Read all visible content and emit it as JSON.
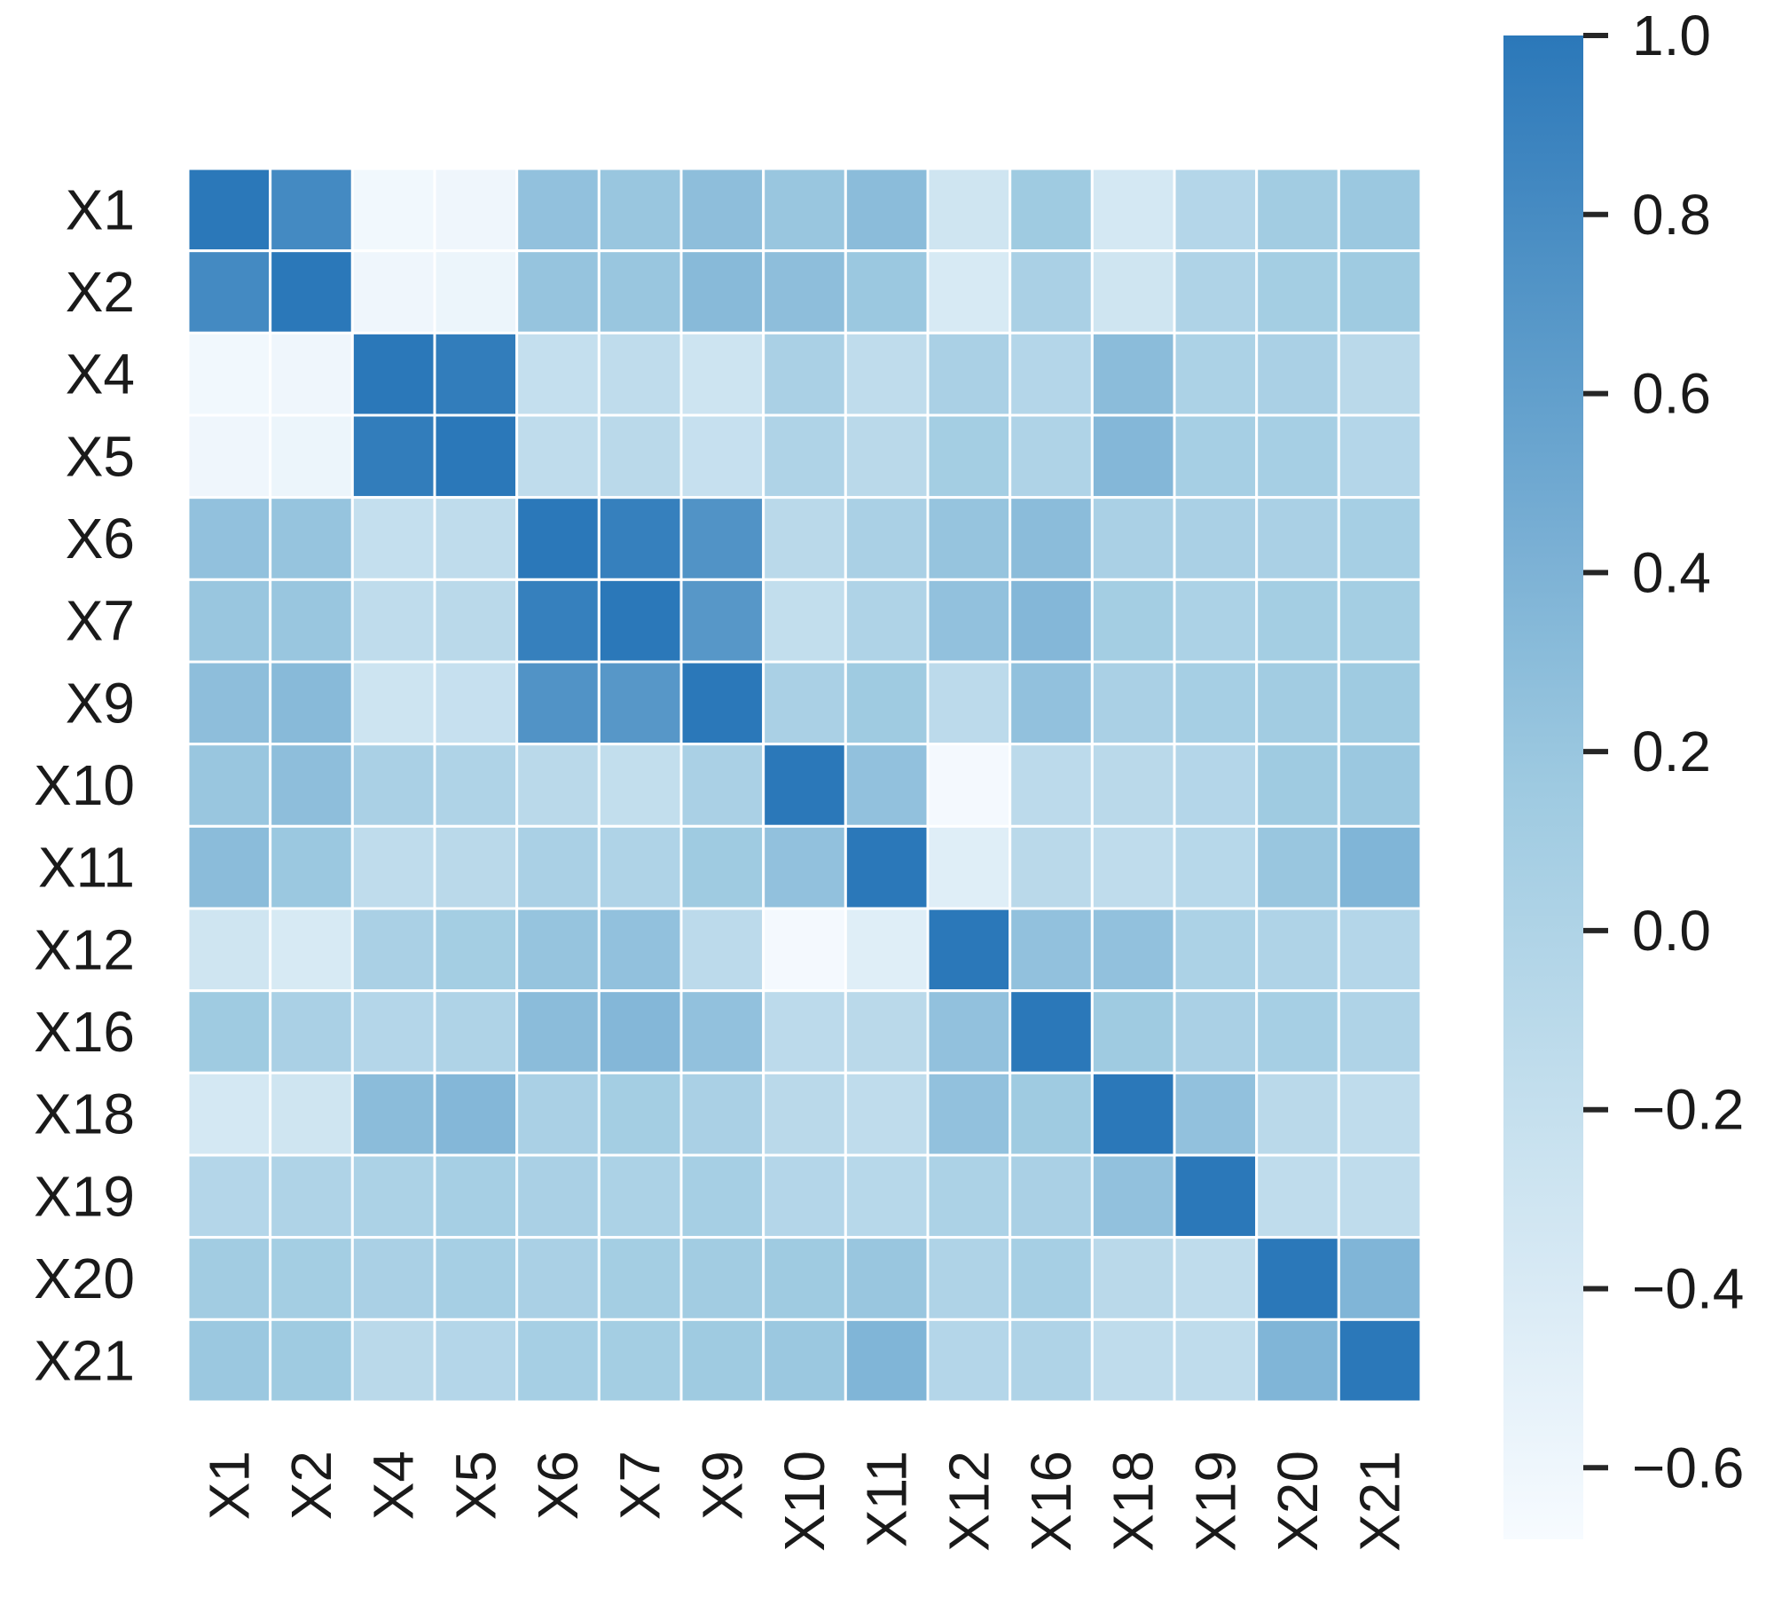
{
  "chart_data": {
    "type": "heatmap",
    "title": "",
    "xlabel": "",
    "ylabel": "",
    "row_labels": [
      "X1",
      "X2",
      "X4",
      "X5",
      "X6",
      "X7",
      "X9",
      "X10",
      "X11",
      "X12",
      "X16",
      "X18",
      "X19",
      "X20",
      "X21"
    ],
    "col_labels": [
      "X1",
      "X2",
      "X4",
      "X5",
      "X6",
      "X7",
      "X9",
      "X10",
      "X11",
      "X12",
      "X16",
      "X18",
      "X19",
      "X20",
      "X21"
    ],
    "values": [
      [
        1.0,
        0.82,
        -0.62,
        -0.6,
        0.25,
        0.2,
        0.28,
        0.2,
        0.3,
        -0.3,
        0.15,
        -0.35,
        -0.05,
        0.12,
        0.18
      ],
      [
        0.82,
        1.0,
        -0.6,
        -0.58,
        0.22,
        0.2,
        0.32,
        0.28,
        0.18,
        -0.38,
        0.05,
        -0.3,
        0.0,
        0.1,
        0.15
      ],
      [
        -0.62,
        -0.6,
        1.0,
        0.95,
        -0.2,
        -0.15,
        -0.28,
        0.05,
        -0.15,
        0.05,
        -0.05,
        0.3,
        0.03,
        0.05,
        -0.1
      ],
      [
        -0.6,
        -0.58,
        0.95,
        1.0,
        -0.15,
        -0.1,
        -0.22,
        0.0,
        -0.1,
        0.1,
        0.0,
        0.35,
        0.08,
        0.08,
        -0.05
      ],
      [
        0.25,
        0.22,
        -0.2,
        -0.15,
        1.0,
        0.92,
        0.72,
        -0.1,
        0.05,
        0.22,
        0.3,
        0.05,
        0.05,
        0.05,
        0.08
      ],
      [
        0.2,
        0.2,
        -0.15,
        -0.1,
        0.92,
        1.0,
        0.68,
        -0.18,
        0.0,
        0.25,
        0.35,
        0.1,
        0.03,
        0.1,
        0.1
      ],
      [
        0.28,
        0.32,
        -0.28,
        -0.22,
        0.72,
        0.68,
        1.0,
        0.05,
        0.15,
        -0.12,
        0.25,
        0.05,
        0.08,
        0.12,
        0.15
      ],
      [
        0.2,
        0.28,
        0.05,
        0.0,
        -0.1,
        -0.18,
        0.05,
        1.0,
        0.25,
        -0.65,
        -0.12,
        -0.1,
        -0.05,
        0.15,
        0.18
      ],
      [
        0.3,
        0.18,
        -0.15,
        -0.1,
        0.05,
        0.0,
        0.15,
        0.25,
        1.0,
        -0.45,
        -0.1,
        -0.15,
        -0.08,
        0.2,
        0.38
      ],
      [
        -0.3,
        -0.38,
        0.05,
        0.1,
        0.22,
        0.25,
        -0.12,
        -0.65,
        -0.45,
        1.0,
        0.25,
        0.25,
        0.03,
        0.0,
        -0.05
      ],
      [
        0.15,
        0.05,
        -0.05,
        0.0,
        0.3,
        0.35,
        0.25,
        -0.12,
        -0.1,
        0.25,
        1.0,
        0.15,
        0.05,
        0.08,
        0.0
      ],
      [
        -0.35,
        -0.3,
        0.3,
        0.35,
        0.05,
        0.1,
        0.05,
        -0.1,
        -0.15,
        0.25,
        0.15,
        1.0,
        0.25,
        -0.1,
        -0.15
      ],
      [
        -0.05,
        0.0,
        0.03,
        0.08,
        0.05,
        0.03,
        0.08,
        -0.05,
        -0.08,
        0.03,
        0.05,
        0.25,
        1.0,
        -0.15,
        -0.15
      ],
      [
        0.12,
        0.1,
        0.05,
        0.08,
        0.05,
        0.1,
        0.12,
        0.15,
        0.2,
        0.0,
        0.08,
        -0.1,
        -0.15,
        1.0,
        0.38
      ],
      [
        0.18,
        0.15,
        -0.1,
        -0.05,
        0.08,
        0.1,
        0.15,
        0.18,
        0.38,
        -0.05,
        0.0,
        -0.15,
        -0.15,
        0.38,
        1.0
      ]
    ],
    "vmin": -0.68,
    "vmax": 1.0,
    "colormap": {
      "low": "#f7fbff",
      "mid": "#9ecae1",
      "high": "#2b78b9"
    },
    "colorbar": {
      "ticks": [
        1.0,
        0.8,
        0.6,
        0.4,
        0.2,
        0.0,
        -0.2,
        -0.4,
        -0.6
      ],
      "tick_labels": [
        "1.0",
        "0.8",
        "0.6",
        "0.4",
        "0.2",
        "0.0",
        "−0.2",
        "−0.4",
        "−0.6"
      ]
    },
    "cell_border_color": "#ffffff",
    "grid": false,
    "legend": "colorbar-right"
  }
}
